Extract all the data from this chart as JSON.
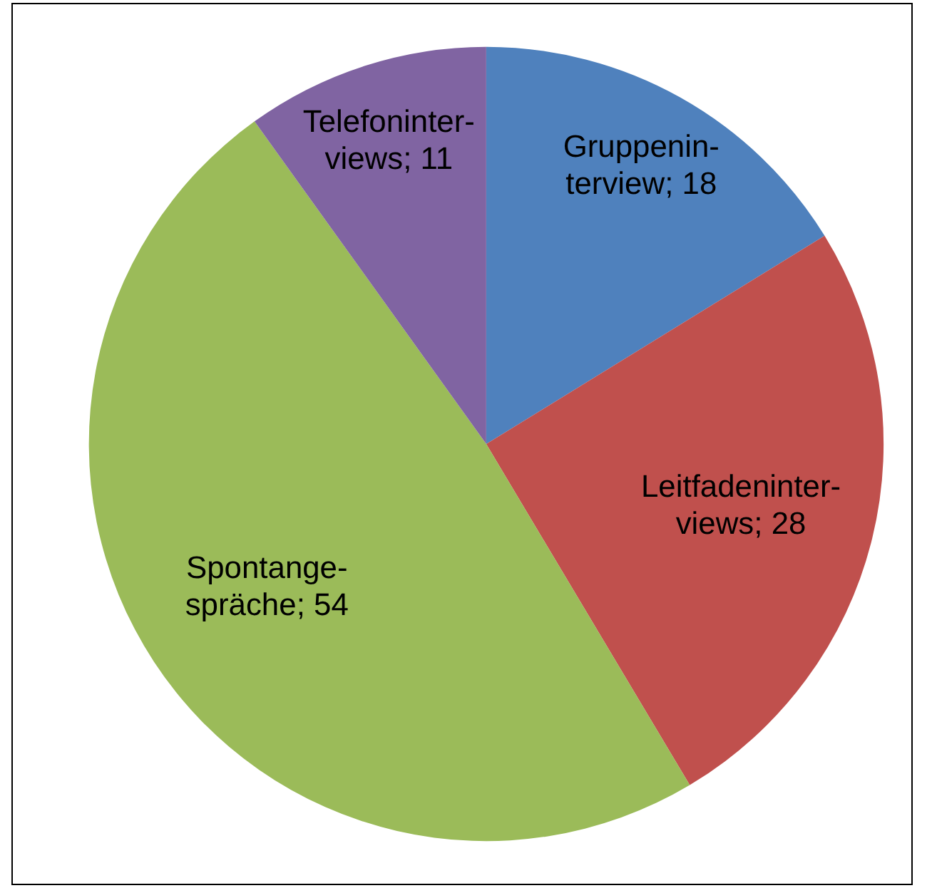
{
  "chart_data": {
    "type": "pie",
    "categories": [
      "Gruppenin-\nterview",
      "Leitfadeninter-\nviews",
      "Spontange-\nspräche",
      "Telefoninter-\nviews"
    ],
    "values": [
      18,
      28,
      54,
      11
    ],
    "colors": [
      "#4f81bd",
      "#c0504d",
      "#9bbb59",
      "#8064a2"
    ],
    "value_labels": [
      "; 18",
      "; 28",
      "; 54",
      "; 11"
    ],
    "legend": false
  }
}
